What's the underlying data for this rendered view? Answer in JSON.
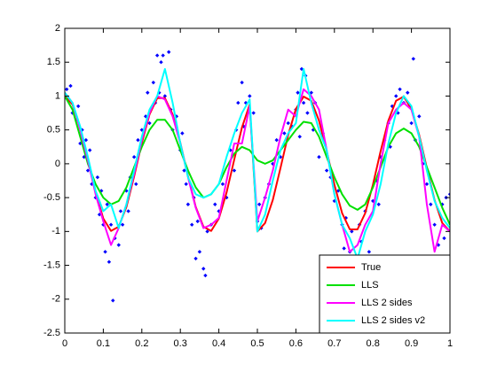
{
  "chart_data": {
    "type": "line",
    "xlim": [
      0,
      1
    ],
    "ylim": [
      -2.5,
      2
    ],
    "xticks": [
      0,
      0.1,
      0.2,
      0.3,
      0.4,
      0.5,
      0.6,
      0.7,
      0.8,
      0.9,
      1
    ],
    "yticks": [
      -2.5,
      -2,
      -1.5,
      -1,
      -0.5,
      0,
      0.5,
      1,
      1.5,
      2
    ],
    "grid": false,
    "legend": "lower right",
    "x": [
      0,
      0.02,
      0.04,
      0.06,
      0.08,
      0.1,
      0.12,
      0.14,
      0.16,
      0.18,
      0.2,
      0.22,
      0.24,
      0.26,
      0.28,
      0.3,
      0.32,
      0.34,
      0.36,
      0.38,
      0.4,
      0.42,
      0.44,
      0.46,
      0.48,
      0.5,
      0.52,
      0.54,
      0.56,
      0.58,
      0.6,
      0.62,
      0.64,
      0.66,
      0.68,
      0.7,
      0.72,
      0.74,
      0.76,
      0.78,
      0.8,
      0.82,
      0.84,
      0.86,
      0.88,
      0.9,
      0.92,
      0.94,
      0.96,
      0.98,
      1
    ],
    "series": [
      {
        "name": "True",
        "color": "#ff0000",
        "values": [
          1,
          0.876,
          0.536,
          0.063,
          -0.426,
          -0.809,
          -0.992,
          -0.93,
          -0.637,
          -0.187,
          0.309,
          0.729,
          0.969,
          0.969,
          0.729,
          0.309,
          -0.187,
          -0.637,
          -0.93,
          -0.992,
          -0.809,
          -0.426,
          0.063,
          0.536,
          0.876,
          -1,
          -0.876,
          -0.536,
          -0.063,
          0.426,
          0.809,
          0.992,
          0.93,
          0.637,
          0.187,
          -0.309,
          -0.729,
          -0.969,
          -0.969,
          -0.729,
          -0.309,
          0.187,
          0.637,
          0.93,
          0.992,
          0.809,
          0.426,
          -0.063,
          -0.536,
          -0.876,
          -1
        ]
      },
      {
        "name": "LLS",
        "color": "#00e000",
        "values": [
          1,
          0.8,
          0.4,
          0,
          -0.3,
          -0.5,
          -0.6,
          -0.55,
          -0.35,
          -0.05,
          0.25,
          0.5,
          0.65,
          0.65,
          0.5,
          0.2,
          -0.1,
          -0.35,
          -0.5,
          -0.45,
          -0.3,
          -0.05,
          0.15,
          0.25,
          0.2,
          0.05,
          0,
          0.05,
          0.2,
          0.35,
          0.5,
          0.62,
          0.6,
          0.4,
          0.1,
          -0.2,
          -0.45,
          -0.62,
          -0.68,
          -0.6,
          -0.35,
          -0.05,
          0.25,
          0.45,
          0.52,
          0.45,
          0.25,
          -0.05,
          -0.35,
          -0.65,
          -0.9
        ]
      },
      {
        "name": "LLS 2 sides",
        "color": "#ff00ff",
        "values": [
          1.05,
          0.9,
          0.5,
          0.05,
          -0.45,
          -0.85,
          -1.2,
          -0.95,
          -0.6,
          -0.15,
          0.35,
          0.75,
          1,
          0.95,
          0.7,
          0.3,
          -0.2,
          -0.65,
          -0.95,
          -0.9,
          -0.8,
          -0.25,
          0.3,
          0.3,
          0.85,
          -0.85,
          -0.5,
          -0.1,
          0.4,
          0.8,
          0.7,
          1.1,
          1,
          0.8,
          0.2,
          -0.45,
          -0.9,
          -1.3,
          -1.2,
          -0.9,
          -0.7,
          0,
          0.6,
          0.8,
          0.9,
          0.8,
          0.4,
          -0.6,
          -1.3,
          -0.9,
          -1
        ]
      },
      {
        "name": "LLS 2 sides v2",
        "color": "#00ffff",
        "values": [
          1.05,
          0.9,
          0.55,
          0.1,
          -0.4,
          -0.7,
          -0.6,
          -0.95,
          -0.6,
          -0.1,
          0.4,
          0.8,
          1,
          1.4,
          0.9,
          0.3,
          -0.2,
          -0.45,
          -0.5,
          -0.45,
          -0.3,
          0.1,
          0.45,
          0.75,
          0.95,
          -1,
          -0.75,
          -0.25,
          0.2,
          0.45,
          0.6,
          1.4,
          0.9,
          0.5,
          0.2,
          -0.45,
          -0.9,
          -1.1,
          -1.4,
          -1,
          -0.75,
          -0.3,
          0.3,
          0.75,
          1,
          0.85,
          0.4,
          -0.1,
          -0.55,
          -0.8,
          -0.95
        ]
      }
    ],
    "points": {
      "color": "#0000ff",
      "x": [
        0.005,
        0.01,
        0.015,
        0.02,
        0.03,
        0.035,
        0.04,
        0.045,
        0.05,
        0.055,
        0.06,
        0.065,
        0.07,
        0.08,
        0.085,
        0.09,
        0.095,
        0.1,
        0.105,
        0.11,
        0.115,
        0.12,
        0.125,
        0.13,
        0.14,
        0.145,
        0.15,
        0.16,
        0.165,
        0.17,
        0.18,
        0.185,
        0.19,
        0.2,
        0.21,
        0.215,
        0.22,
        0.23,
        0.235,
        0.24,
        0.245,
        0.25,
        0.255,
        0.26,
        0.27,
        0.275,
        0.28,
        0.29,
        0.3,
        0.305,
        0.31,
        0.315,
        0.32,
        0.33,
        0.335,
        0.34,
        0.345,
        0.35,
        0.36,
        0.365,
        0.37,
        0.38,
        0.39,
        0.4,
        0.41,
        0.42,
        0.43,
        0.44,
        0.445,
        0.45,
        0.46,
        0.465,
        0.47,
        0.48,
        0.49,
        0.5,
        0.505,
        0.51,
        0.52,
        0.53,
        0.54,
        0.55,
        0.56,
        0.57,
        0.58,
        0.59,
        0.6,
        0.605,
        0.61,
        0.615,
        0.62,
        0.625,
        0.63,
        0.64,
        0.645,
        0.65,
        0.66,
        0.67,
        0.68,
        0.69,
        0.7,
        0.71,
        0.72,
        0.725,
        0.73,
        0.74,
        0.745,
        0.75,
        0.76,
        0.765,
        0.77,
        0.78,
        0.79,
        0.8,
        0.81,
        0.815,
        0.82,
        0.83,
        0.84,
        0.845,
        0.85,
        0.86,
        0.865,
        0.87,
        0.88,
        0.89,
        0.9,
        0.905,
        0.91,
        0.92,
        0.93,
        0.94,
        0.95,
        0.96,
        0.97,
        0.98,
        0.985,
        0.99,
        1
      ],
      "values": [
        1.1,
        0.95,
        1.15,
        0.75,
        0.65,
        0.85,
        0.3,
        0.5,
        0.1,
        0.35,
        -0.1,
        0.2,
        -0.3,
        -0.5,
        -0.2,
        -0.75,
        -0.4,
        -0.9,
        -1.3,
        -0.6,
        -1.45,
        -0.9,
        -2.02,
        -1.1,
        -1.2,
        -0.7,
        -0.9,
        -0.4,
        -0.7,
        -0.2,
        0.1,
        -0.3,
        0.35,
        0.5,
        0.7,
        1.05,
        0.6,
        1.2,
        0.9,
        1.6,
        1.05,
        1.5,
        1.6,
        1,
        1.65,
        0.8,
        0.5,
        0.7,
        0.2,
        0.45,
        -0.1,
        -0.3,
        -0.6,
        -0.9,
        -0.5,
        -1.4,
        -0.85,
        -1.3,
        -1.55,
        -1.65,
        -1,
        -0.9,
        -0.6,
        -0.7,
        -0.3,
        -0.5,
        0.2,
        -0.1,
        0.5,
        0.9,
        1.2,
        0.55,
        0.9,
        1,
        0.75,
        -0.85,
        -0.6,
        -0.95,
        -0.5,
        -0.3,
        0,
        0.35,
        0.1,
        0.45,
        0.6,
        0.55,
        0.8,
        1.05,
        0.4,
        1.4,
        0.9,
        1.3,
        0.75,
        1.05,
        0.5,
        0.9,
        0.1,
        0.45,
        -0.1,
        -0.2,
        -0.55,
        -0.4,
        -0.9,
        -1.25,
        -0.8,
        -1.3,
        -1,
        -1.4,
        -1.55,
        -0.9,
        -1.15,
        -0.7,
        -1.3,
        -0.55,
        -0.25,
        -0.6,
        0.1,
        0.35,
        0.6,
        0.25,
        0.85,
        1,
        0.75,
        1.1,
        0.9,
        1.05,
        0.6,
        1.55,
        0.35,
        0.7,
        0,
        -0.3,
        -0.6,
        -0.9,
        -1.2,
        -0.6,
        -1.1,
        -0.5,
        -0.45
      ]
    }
  }
}
